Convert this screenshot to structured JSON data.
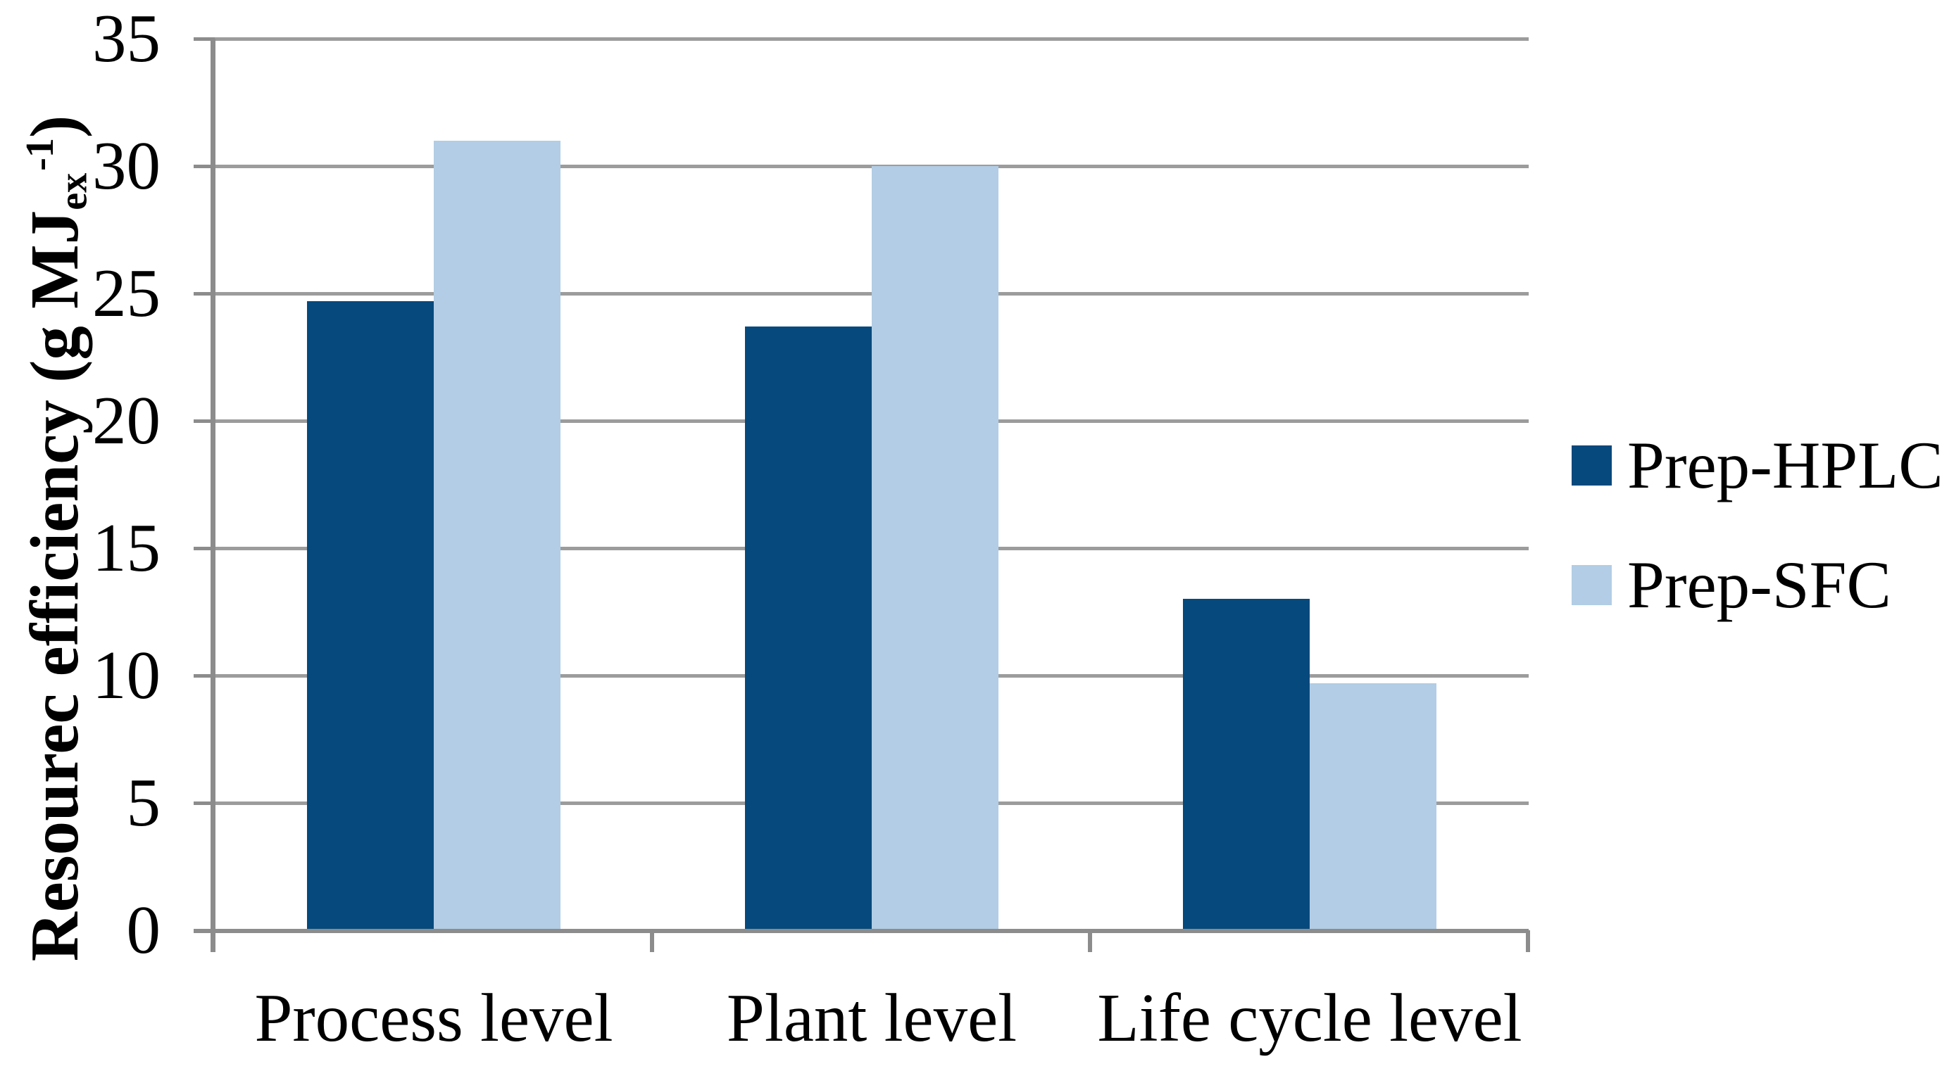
{
  "chart_data": {
    "type": "bar",
    "title": "",
    "categories": [
      "Process level",
      "Plant level",
      "Life cycle level"
    ],
    "series": [
      {
        "name": "Prep-HPLC",
        "color": "#05497D",
        "values": [
          24.7,
          23.7,
          13.0
        ]
      },
      {
        "name": "Prep-SFC",
        "color": "#B2CDE5",
        "values": [
          31.0,
          30.0,
          9.7
        ]
      }
    ],
    "ylabel": "Resourec efficiency (g MJex-1)",
    "ylabel_parts": {
      "prefix": "Resourec efficiency (g MJ",
      "subscript": "ex",
      "superscript": "-1",
      "suffix": ")"
    },
    "xlabel": "",
    "ylim": [
      0,
      35
    ],
    "ytick_interval": 5,
    "ytick_labels": [
      "0",
      "5",
      "10",
      "15",
      "20",
      "25",
      "30",
      "35"
    ],
    "grid": true,
    "legend": {
      "position": "right",
      "entries": [
        "Prep-HPLC",
        "Prep-SFC"
      ]
    },
    "colors": {
      "gridline": "#9C9C9C",
      "axis": "#8C8C8C",
      "text": "#000000",
      "background": "#FFFFFF"
    }
  }
}
